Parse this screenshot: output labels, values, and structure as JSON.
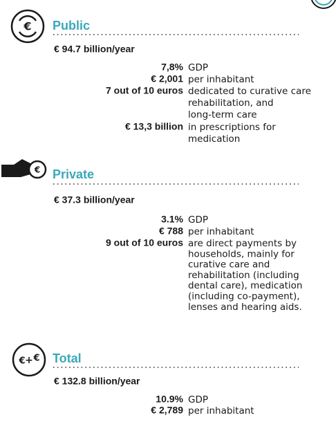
{
  "sections": [
    {
      "heading": "Public",
      "amount": "€ 94.7 billion/year",
      "rows": [
        {
          "value": "7,8%",
          "description": [
            "GDP"
          ]
        },
        {
          "value": "€ 2,001",
          "description": [
            "per inhabitant"
          ]
        },
        {
          "value": "7 out of 10 euros",
          "description": [
            "dedicated to curative care",
            "rehabilitation, and",
            "long-term care"
          ]
        },
        {
          "value": "€ 13,3 billion",
          "description": [
            "in prescriptions for",
            "medication"
          ]
        }
      ]
    },
    {
      "heading": "Private",
      "amount": "€ 37.3 billion/year",
      "rows": [
        {
          "value": "3.1%",
          "description": [
            "GDP"
          ]
        },
        {
          "value": "€ 788",
          "description": [
            "per inhabitant"
          ]
        },
        {
          "value": "9 out of 10 euros",
          "description": [
            "are direct payments by",
            "households, mainly for",
            "curative care and",
            "rehabilitation (including",
            "dental care), medication",
            "(including co-payment),",
            "lenses and hearing aids."
          ]
        }
      ]
    },
    {
      "heading": "Total",
      "amount": "€ 132.8 billion/year",
      "rows": [
        {
          "value": "10.9%",
          "description": [
            "GDP"
          ]
        },
        {
          "value": "€ 2,789",
          "description": [
            "per inhabitant"
          ]
        }
      ]
    }
  ]
}
